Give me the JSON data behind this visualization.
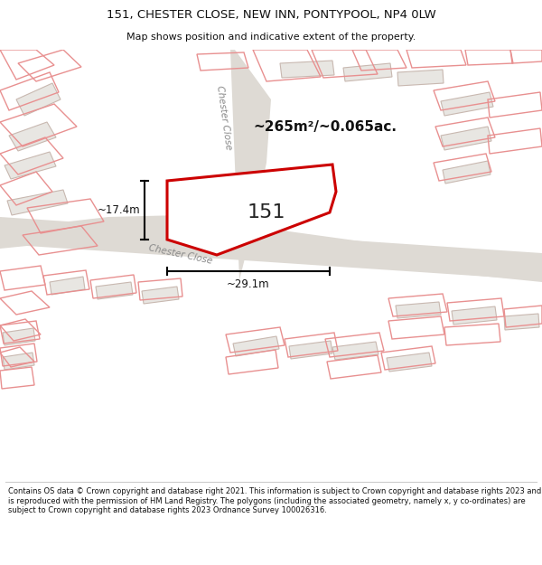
{
  "title_line1": "151, CHESTER CLOSE, NEW INN, PONTYPOOL, NP4 0LW",
  "title_line2": "Map shows position and indicative extent of the property.",
  "property_label": "151",
  "area_label": "~265m²/~0.065ac.",
  "dim_vertical": "~17.4m",
  "dim_horizontal": "~29.1m",
  "footer_text": "Contains OS data © Crown copyright and database right 2021. This information is subject to Crown copyright and database rights 2023 and is reproduced with the permission of HM Land Registry. The polygons (including the associated geometry, namely x, y co-ordinates) are subject to Crown copyright and database rights 2023 Ordnance Survey 100026316.",
  "map_bg": "#f8f7f5",
  "highlight_color": "#cc0000",
  "plot_outline_color": "#f0a0a0",
  "building_fill": "#e8e6e2",
  "building_outline": "#c0b8b0",
  "title_bg": "#ffffff",
  "footer_bg": "#ffffff",
  "dim_color": "#111111",
  "road_fill": "#e0ddd8",
  "road_text_color": "#888888"
}
